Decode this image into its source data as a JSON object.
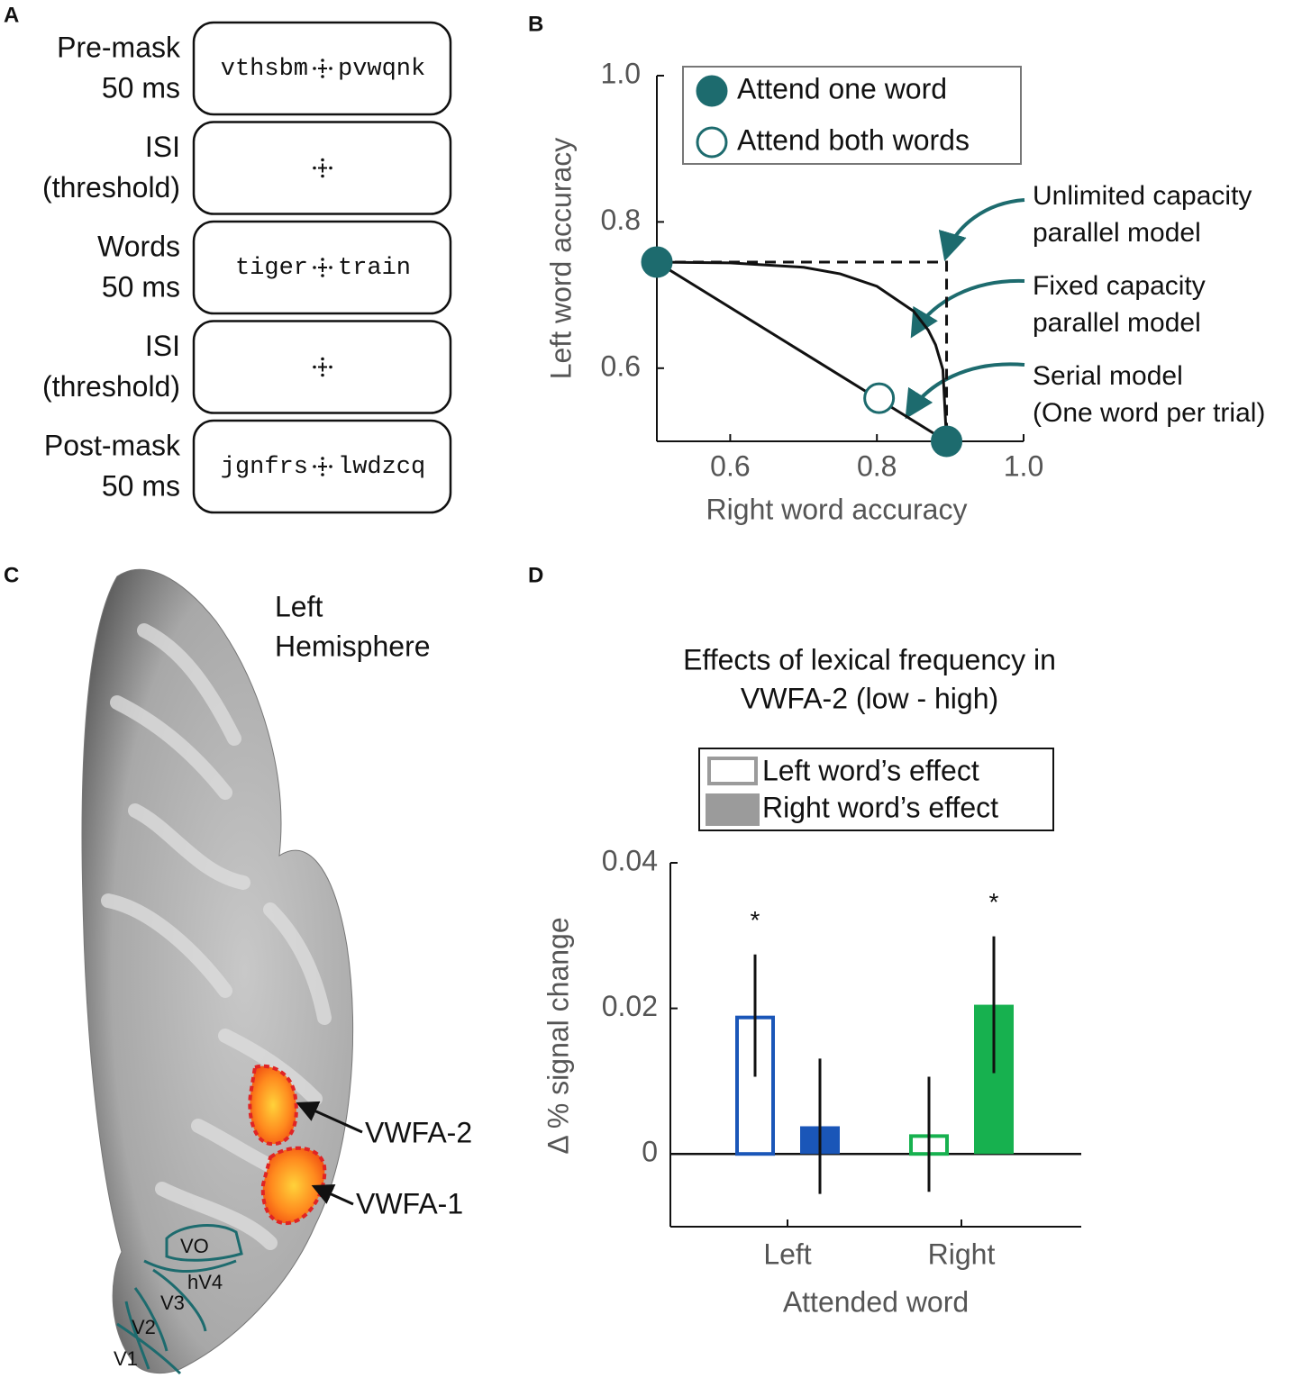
{
  "panel_labels": [
    "A",
    "B",
    "C",
    "D"
  ],
  "trial_sequence": [
    {
      "label": [
        "Pre-mask",
        "50 ms"
      ],
      "left": "vthsbm",
      "right": "pvwqnk"
    },
    {
      "label": [
        "ISI",
        "(threshold)"
      ]
    },
    {
      "label": [
        "Words",
        "50 ms"
      ],
      "left": "tiger",
      "right": "train"
    },
    {
      "label": [
        "ISI",
        "(threshold)"
      ]
    },
    {
      "label": [
        "Post-mask",
        "50 ms"
      ],
      "left": "jgnfrs",
      "right": "lwdzcq"
    }
  ],
  "brain": {
    "title": [
      "Left",
      "Hemisphere"
    ],
    "regions": [
      "VWFA-2",
      "VWFA-1"
    ],
    "areas": [
      "VO",
      "hV4",
      "V3",
      "V2",
      "V1"
    ]
  },
  "chart_data": [
    {
      "type": "scatter",
      "xlabel": "Right word accuracy",
      "ylabel": "Left word accuracy",
      "xlim": [
        0.5,
        1
      ],
      "ylim": [
        0.5,
        1
      ],
      "xticks": [
        0.6,
        0.8,
        {
          "value": 1,
          "label": "1.0"
        }
      ],
      "yticks": [
        0.6,
        0.8,
        {
          "value": 1,
          "label": "1.0"
        }
      ],
      "series": [
        {
          "name": "Attend one word",
          "color": "#1d6b6e",
          "filled": true,
          "x": [
            0.5,
            0.895
          ],
          "values": [
            0.745,
            0.5
          ]
        },
        {
          "name": "Attend both words",
          "color": "#1d6b6e",
          "filled": false,
          "x": [
            0.803
          ],
          "values": [
            0.559
          ]
        }
      ],
      "models": [
        {
          "label": [
            "Unlimited capacity",
            "parallel model"
          ],
          "dashed": true,
          "x": [
            0.5,
            0.895,
            0.895
          ],
          "values": [
            0.745,
            0.745,
            0.5
          ]
        },
        {
          "label": [
            "Fixed capacity",
            "parallel model"
          ],
          "dashed": false,
          "x": [
            0.5,
            0.6,
            0.7,
            0.75,
            0.8,
            0.85,
            0.87,
            0.88,
            0.89,
            0.895
          ],
          "values": [
            0.745,
            0.744,
            0.738,
            0.729,
            0.712,
            0.678,
            0.652,
            0.632,
            0.598,
            0.5
          ]
        },
        {
          "label": [
            "Serial model",
            "(One word per trial)"
          ],
          "dashed": false,
          "x": [
            0.5,
            0.895
          ],
          "values": [
            0.745,
            0.5
          ]
        }
      ],
      "annotation_color": "#1d6b6e"
    },
    {
      "type": "bar",
      "title": [
        "Effects of lexical frequency in",
        "VWFA-2 (low - high)"
      ],
      "xlabel": "Attended word",
      "ylabel": "Δ % signal change",
      "categories": [
        "Left",
        "Right"
      ],
      "category_colors": [
        "#1a56b8",
        "#17b14f"
      ],
      "legend_color": "#9b9b9b",
      "series": [
        {
          "name": "Left word’s effect",
          "filled": false,
          "values": [
            0.019,
            0.0027
          ],
          "errors": [
            0.0084,
            0.0079
          ]
        },
        {
          "name": "Right word’s effect",
          "filled": true,
          "values": [
            0.0038,
            0.0205
          ],
          "errors": [
            0.0093,
            0.0094
          ]
        }
      ],
      "ylim": [
        -0.01,
        0.04
      ],
      "yticks": [
        0,
        0.02,
        0.04
      ],
      "significance": [
        {
          "label": "*",
          "series": 0,
          "category": 0
        },
        {
          "label": "*",
          "series": 1,
          "category": 1
        }
      ]
    }
  ]
}
